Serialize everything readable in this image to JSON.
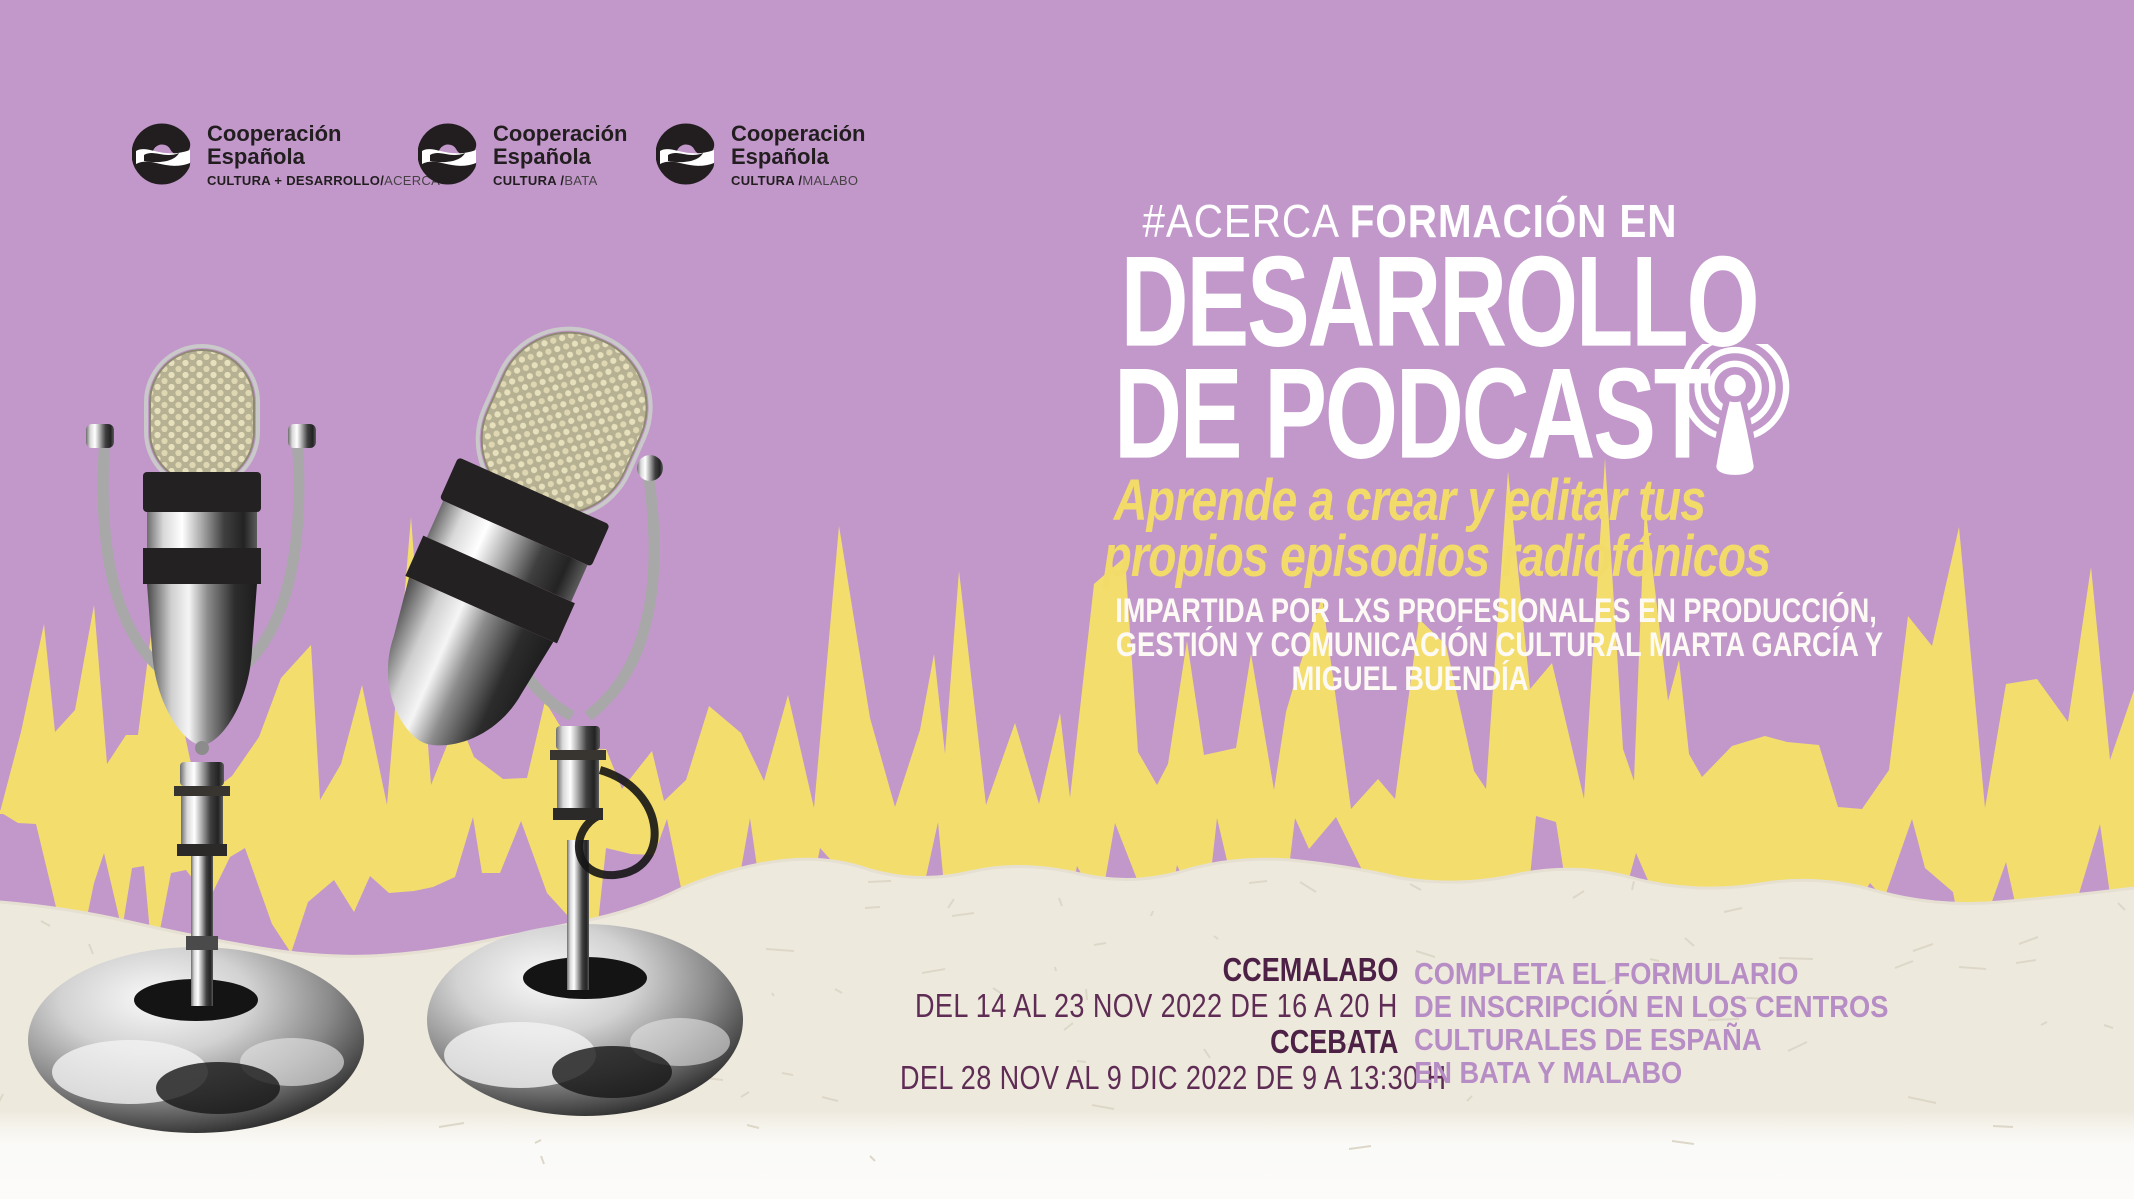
{
  "poster": {
    "colors": {
      "background_lilac": "#c298cb",
      "wave_yellow": "#f3de6d",
      "subtitle_yellow": "#f2db69",
      "headline_white": "#ffffff",
      "plum_dark": "#4c2145",
      "plum_mid": "#5e2c54",
      "lilac_text": "#b78dc6",
      "logo_black": "#221e1f",
      "paper_white": "#faf8f4"
    },
    "icons": {
      "podcast_antenna": "podcast-antenna-icon",
      "logo_mark": "cooperacion-espanola-c-mark"
    },
    "logos": [
      {
        "org_line1": "Cooperación",
        "org_line2": "Española",
        "dept_bold": "CULTURA + DESARROLLO/",
        "dept_light": "ACERCA"
      },
      {
        "org_line1": "Cooperación",
        "org_line2": "Española",
        "dept_bold": "CULTURA /",
        "dept_light": "BATA"
      },
      {
        "org_line1": "Cooperación",
        "org_line2": "Española",
        "dept_bold": "CULTURA /",
        "dept_light": "MALABO"
      }
    ],
    "headline": {
      "kicker_hash": "#ACERCA",
      "kicker_bold": "FORMACIÓN EN",
      "title_line1": "DESARROLLO",
      "title_line2": "DE PODCAST",
      "subtitle_line1": "Aprende a crear y editar tus",
      "subtitle_line2": "propios episodios radiofónicos",
      "instructors_line1": "IMPARTIDA POR LXS PROFESIONALES EN PRODUCCIÓN,",
      "instructors_line2": "GESTIÓN Y COMUNICACIÓN CULTURAL MARTA GARCÍA Y",
      "instructors_line3": "MIGUEL BUENDÍA"
    },
    "schedule": {
      "venues": [
        {
          "name": "CCEMALABO",
          "dates": "DEL 14 AL 23 NOV 2022 DE 16 A 20 H"
        },
        {
          "name": "CCEBATA",
          "dates": "DEL 28 NOV AL 9 DIC 2022 DE 9 A 13:30 H"
        }
      ],
      "cta_lines": [
        "COMPLETA EL FORMULARIO",
        "DE INSCRIPCIÓN EN LOS CENTROS",
        "CULTURALES DE ESPAÑA",
        "EN BATA Y MALABO"
      ]
    }
  }
}
